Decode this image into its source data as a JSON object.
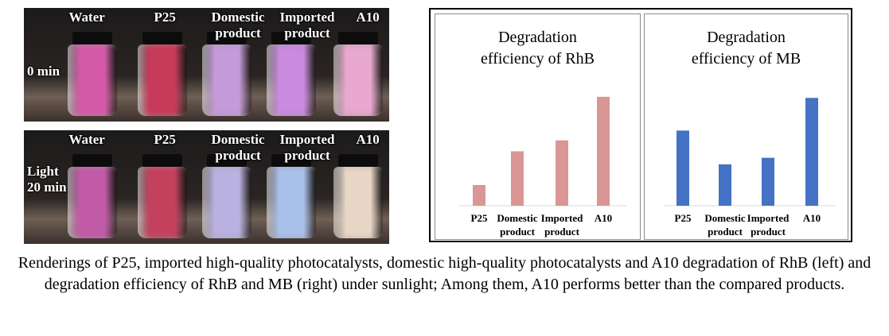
{
  "photos": {
    "top": {
      "vial_labels": [
        "Water",
        "P25",
        "Domestic\nproduct",
        "Imported\nproduct",
        "A10"
      ],
      "time_label": "0 min",
      "vial_colors": [
        "#d45aa8",
        "#c83a5a",
        "#c49ad8",
        "#c98ae0",
        "#e8a8cf"
      ]
    },
    "bottom": {
      "vial_labels": [
        "Water",
        "P25",
        "Domestic\nproduct",
        "Imported\nproduct",
        "A10"
      ],
      "time_label": "Light\n20 min",
      "vial_colors": [
        "#c25ba7",
        "#c4415e",
        "#b9b2e0",
        "#a9c0ea",
        "#e8d6c6"
      ]
    }
  },
  "chart_data": [
    {
      "type": "bar",
      "title": "Degradation\nefficiency of RhB",
      "categories": [
        "P25",
        "Domestic\nproduct",
        "Imported\nproduct",
        "A10"
      ],
      "values": [
        1.9,
        5.0,
        6.0,
        10.0
      ],
      "ylim": [
        0,
        10.5
      ],
      "color": "#d99694",
      "grid": false
    },
    {
      "type": "bar",
      "title": "Degradation\nefficiency of MB",
      "categories": [
        "P25",
        "Domestic\nproduct",
        "Imported\nproduct",
        "A10"
      ],
      "values": [
        6.9,
        3.8,
        4.4,
        9.9
      ],
      "ylim": [
        0,
        10.5
      ],
      "color": "#4472c4",
      "grid": false
    }
  ],
  "caption": "Renderings of P25, imported high-quality photocatalysts, domestic high-quality photocatalysts and A10 degradation of RhB (left) and degradation efficiency of RhB and MB (right) under sunlight; Among them, A10 performs better than the compared products."
}
